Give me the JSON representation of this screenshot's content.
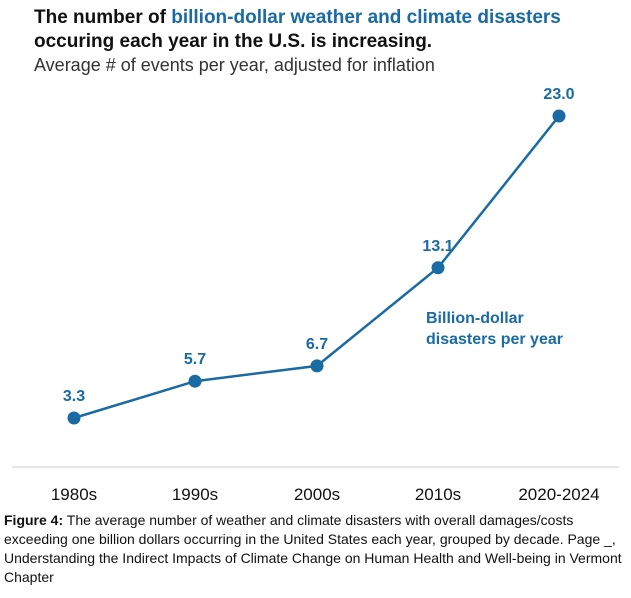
{
  "title": {
    "part1": "The number of ",
    "highlight": "billion-dollar weather and climate disasters",
    "part2": "occuring each year in the U.S. is increasing."
  },
  "subtitle": "Average # of events per year, adjusted for inflation",
  "caption": {
    "label": "Figure 4:",
    "text": " The average number of weather and climate disasters with overall damages/costs exceeding one billion dollars occurring in the United States each year, grouped by decade. Page _, Understanding the Indirect Impacts of Climate Change on Human Health and Well-being in Vermont Chapter"
  },
  "chart_data": {
    "type": "line",
    "categories": [
      "1980s",
      "1990s",
      "2000s",
      "2010s",
      "2020-2024"
    ],
    "series": [
      {
        "values": [
          3.3,
          5.7,
          6.7,
          13.1,
          23.0
        ],
        "labels": [
          "3.3",
          "5.7",
          "6.7",
          "13.1",
          "23.0"
        ]
      }
    ],
    "annotation": [
      "Billion-dollar",
      "disasters per year"
    ],
    "ylim": [
      0,
      25
    ],
    "grid": false,
    "colors": {
      "line": "#1a6aa3",
      "axis": "#cccccc",
      "highlight": "#1a6aa3"
    }
  }
}
